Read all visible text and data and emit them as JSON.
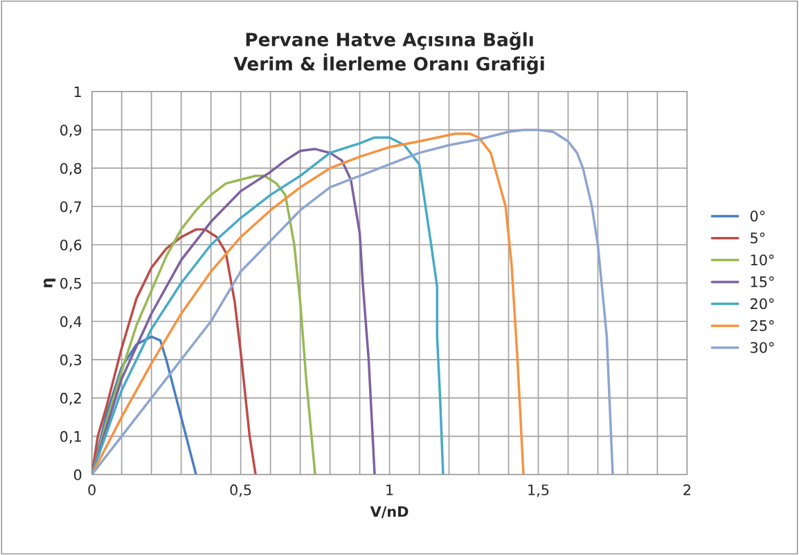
{
  "chart_data": {
    "type": "line",
    "title": "Pervane Hatve Açısına Bağlı\nVerim & İlerleme Oranı Grafiği",
    "xlabel": "V/nD",
    "ylabel": "η",
    "xlim": [
      0,
      2
    ],
    "ylim": [
      0,
      1
    ],
    "xticks": [
      0,
      {
        "value": 0.1,
        "label": null
      },
      {
        "value": 0.2,
        "label": null
      },
      {
        "value": 0.3,
        "label": null
      },
      {
        "value": 0.4,
        "label": null
      },
      {
        "value": 0.5,
        "label": "0,5"
      },
      {
        "value": 0.6,
        "label": null
      },
      {
        "value": 0.7,
        "label": null
      },
      {
        "value": 0.8,
        "label": null
      },
      {
        "value": 0.9,
        "label": null
      },
      1,
      {
        "value": 1.1,
        "label": null
      },
      {
        "value": 1.2,
        "label": null
      },
      {
        "value": 1.3,
        "label": null
      },
      {
        "value": 1.4,
        "label": null
      },
      {
        "value": 1.5,
        "label": "1,5"
      },
      {
        "value": 1.6,
        "label": null
      },
      {
        "value": 1.7,
        "label": null
      },
      {
        "value": 1.8,
        "label": null
      },
      {
        "value": 1.9,
        "label": null
      },
      2
    ],
    "yticks": [
      0,
      {
        "value": 0.1,
        "label": "0,1"
      },
      {
        "value": 0.2,
        "label": "0,2"
      },
      {
        "value": 0.3,
        "label": "0,3"
      },
      {
        "value": 0.4,
        "label": "0,4"
      },
      {
        "value": 0.5,
        "label": "0,5"
      },
      {
        "value": 0.6,
        "label": "0,6"
      },
      {
        "value": 0.7,
        "label": "0,7"
      },
      {
        "value": 0.8,
        "label": "0,8"
      },
      {
        "value": 0.9,
        "label": "0,9"
      },
      1
    ],
    "grid": true,
    "legend": "right",
    "marker": "none",
    "line_style": "solid",
    "series": [
      {
        "name": "0°",
        "color": "#4a7ebb",
        "x": [
          0,
          0.05,
          0.1,
          0.15,
          0.2,
          0.23,
          0.25,
          0.3,
          0.35
        ],
        "values": [
          0,
          0.16,
          0.28,
          0.34,
          0.36,
          0.35,
          0.3,
          0.15,
          0
        ]
      },
      {
        "name": "5°",
        "color": "#be4b48",
        "x": [
          0,
          0.02,
          0.05,
          0.1,
          0.15,
          0.2,
          0.25,
          0.3,
          0.35,
          0.38,
          0.42,
          0.45,
          0.48,
          0.5,
          0.53,
          0.55
        ],
        "values": [
          0,
          0.1,
          0.18,
          0.33,
          0.46,
          0.54,
          0.59,
          0.62,
          0.64,
          0.64,
          0.62,
          0.58,
          0.45,
          0.32,
          0.1,
          0
        ]
      },
      {
        "name": "10°",
        "color": "#98b954",
        "x": [
          0,
          0.05,
          0.1,
          0.15,
          0.2,
          0.25,
          0.3,
          0.35,
          0.4,
          0.45,
          0.5,
          0.55,
          0.58,
          0.62,
          0.65,
          0.68,
          0.7,
          0.72,
          0.75
        ],
        "values": [
          0,
          0.14,
          0.27,
          0.39,
          0.48,
          0.57,
          0.64,
          0.69,
          0.73,
          0.76,
          0.77,
          0.78,
          0.78,
          0.76,
          0.73,
          0.6,
          0.45,
          0.25,
          0
        ]
      },
      {
        "name": "15°",
        "color": "#7d60a0",
        "x": [
          0,
          0.1,
          0.2,
          0.3,
          0.4,
          0.5,
          0.6,
          0.65,
          0.7,
          0.75,
          0.8,
          0.84,
          0.87,
          0.9,
          0.91,
          0.93,
          0.95
        ],
        "values": [
          0,
          0.25,
          0.42,
          0.56,
          0.66,
          0.74,
          0.79,
          0.82,
          0.845,
          0.85,
          0.84,
          0.82,
          0.77,
          0.63,
          0.5,
          0.3,
          0
        ]
      },
      {
        "name": "20°",
        "color": "#46aac5",
        "x": [
          0,
          0.1,
          0.2,
          0.3,
          0.4,
          0.5,
          0.6,
          0.7,
          0.8,
          0.9,
          0.95,
          1.0,
          1.05,
          1.1,
          1.14,
          1.16,
          1.16,
          1.17,
          1.18
        ],
        "values": [
          0,
          0.22,
          0.38,
          0.5,
          0.6,
          0.67,
          0.73,
          0.78,
          0.84,
          0.865,
          0.88,
          0.88,
          0.86,
          0.81,
          0.6,
          0.49,
          0.36,
          0.2,
          0
        ]
      },
      {
        "name": "25°",
        "color": "#f69240",
        "x": [
          0,
          0.1,
          0.2,
          0.3,
          0.4,
          0.5,
          0.6,
          0.7,
          0.8,
          0.9,
          1.0,
          1.1,
          1.22,
          1.27,
          1.3,
          1.34,
          1.39,
          1.41,
          1.43,
          1.45
        ],
        "values": [
          0,
          0.15,
          0.29,
          0.42,
          0.53,
          0.62,
          0.69,
          0.75,
          0.8,
          0.83,
          0.855,
          0.87,
          0.89,
          0.89,
          0.88,
          0.84,
          0.7,
          0.55,
          0.3,
          0
        ]
      },
      {
        "name": "30°",
        "color": "#8ea5d0",
        "x": [
          0,
          0.2,
          0.4,
          0.5,
          0.6,
          0.7,
          0.8,
          0.9,
          1.0,
          1.1,
          1.2,
          1.3,
          1.4,
          1.45,
          1.5,
          1.55,
          1.6,
          1.63,
          1.65,
          1.68,
          1.7,
          1.73,
          1.75
        ],
        "values": [
          0,
          0.2,
          0.4,
          0.53,
          0.61,
          0.69,
          0.75,
          0.78,
          0.81,
          0.84,
          0.86,
          0.875,
          0.895,
          0.9,
          0.9,
          0.895,
          0.87,
          0.84,
          0.8,
          0.7,
          0.6,
          0.36,
          0
        ]
      }
    ]
  }
}
